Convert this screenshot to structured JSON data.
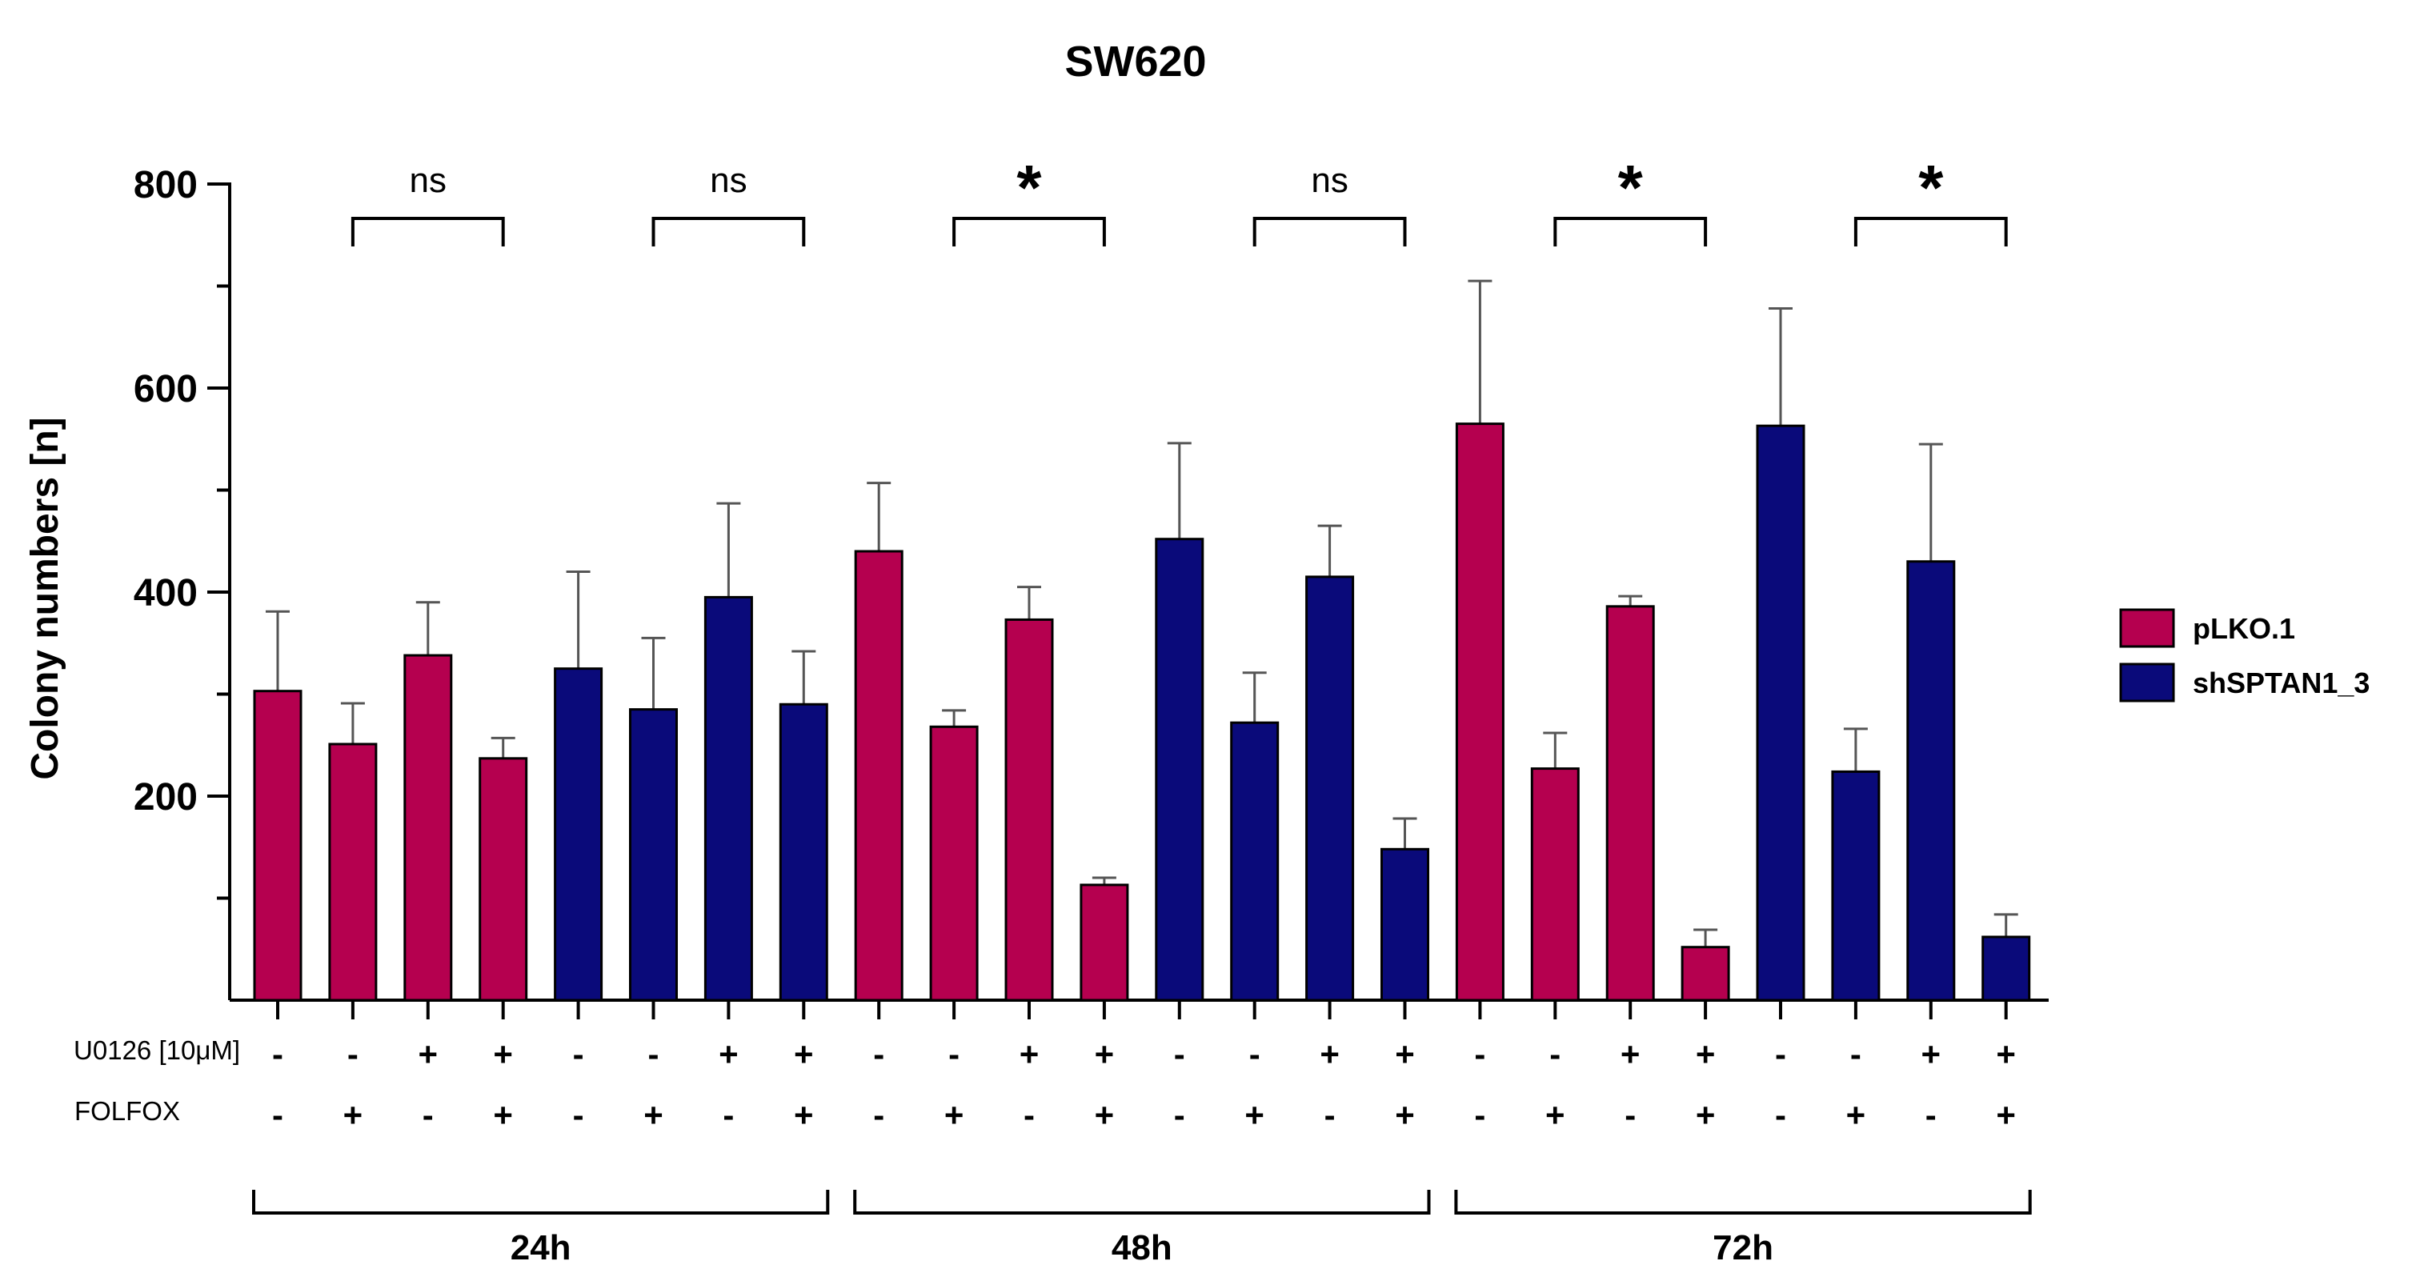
{
  "chart_data": {
    "type": "bar",
    "title": "SW620",
    "ylabel": "Colony numbers [n]",
    "xlabel": "",
    "ylim": [
      0,
      800
    ],
    "yticks": [
      200,
      400,
      600,
      800
    ],
    "legend_position": "right",
    "series_colors": {
      "pLKO.1": "#b5004f",
      "shSPTAN1_3": "#0a0a7a"
    },
    "legend": [
      {
        "name": "pLKO.1",
        "color": "#b5004f"
      },
      {
        "name": "shSPTAN1_3",
        "color": "#0a0a7a"
      }
    ],
    "row_labels": {
      "u0126": "U0126 [10μM]",
      "folfox": "FOLFOX"
    },
    "bars": [
      {
        "group": "24h",
        "series": "pLKO.1",
        "u0126": "-",
        "folfox": "-",
        "value": 303,
        "error": 78
      },
      {
        "group": "24h",
        "series": "pLKO.1",
        "u0126": "-",
        "folfox": "+",
        "value": 251,
        "error": 40
      },
      {
        "group": "24h",
        "series": "pLKO.1",
        "u0126": "+",
        "folfox": "-",
        "value": 338,
        "error": 52
      },
      {
        "group": "24h",
        "series": "pLKO.1",
        "u0126": "+",
        "folfox": "+",
        "value": 237,
        "error": 20
      },
      {
        "group": "24h",
        "series": "shSPTAN1_3",
        "u0126": "-",
        "folfox": "-",
        "value": 325,
        "error": 95
      },
      {
        "group": "24h",
        "series": "shSPTAN1_3",
        "u0126": "-",
        "folfox": "+",
        "value": 285,
        "error": 70
      },
      {
        "group": "24h",
        "series": "shSPTAN1_3",
        "u0126": "+",
        "folfox": "-",
        "value": 395,
        "error": 92
      },
      {
        "group": "24h",
        "series": "shSPTAN1_3",
        "u0126": "+",
        "folfox": "+",
        "value": 290,
        "error": 52
      },
      {
        "group": "48h",
        "series": "pLKO.1",
        "u0126": "-",
        "folfox": "-",
        "value": 440,
        "error": 67
      },
      {
        "group": "48h",
        "series": "pLKO.1",
        "u0126": "-",
        "folfox": "+",
        "value": 268,
        "error": 16
      },
      {
        "group": "48h",
        "series": "pLKO.1",
        "u0126": "+",
        "folfox": "-",
        "value": 373,
        "error": 32
      },
      {
        "group": "48h",
        "series": "pLKO.1",
        "u0126": "+",
        "folfox": "+",
        "value": 113,
        "error": 7
      },
      {
        "group": "48h",
        "series": "shSPTAN1_3",
        "u0126": "-",
        "folfox": "-",
        "value": 452,
        "error": 94
      },
      {
        "group": "48h",
        "series": "shSPTAN1_3",
        "u0126": "-",
        "folfox": "+",
        "value": 272,
        "error": 49
      },
      {
        "group": "48h",
        "series": "shSPTAN1_3",
        "u0126": "+",
        "folfox": "-",
        "value": 415,
        "error": 50
      },
      {
        "group": "48h",
        "series": "shSPTAN1_3",
        "u0126": "+",
        "folfox": "+",
        "value": 148,
        "error": 30
      },
      {
        "group": "72h",
        "series": "pLKO.1",
        "u0126": "-",
        "folfox": "-",
        "value": 565,
        "error": 140
      },
      {
        "group": "72h",
        "series": "pLKO.1",
        "u0126": "-",
        "folfox": "+",
        "value": 227,
        "error": 35
      },
      {
        "group": "72h",
        "series": "pLKO.1",
        "u0126": "+",
        "folfox": "-",
        "value": 386,
        "error": 10
      },
      {
        "group": "72h",
        "series": "pLKO.1",
        "u0126": "+",
        "folfox": "+",
        "value": 52,
        "error": 17
      },
      {
        "group": "72h",
        "series": "shSPTAN1_3",
        "u0126": "-",
        "folfox": "-",
        "value": 563,
        "error": 115
      },
      {
        "group": "72h",
        "series": "shSPTAN1_3",
        "u0126": "-",
        "folfox": "+",
        "value": 224,
        "error": 42
      },
      {
        "group": "72h",
        "series": "shSPTAN1_3",
        "u0126": "+",
        "folfox": "-",
        "value": 430,
        "error": 115
      },
      {
        "group": "72h",
        "series": "shSPTAN1_3",
        "u0126": "+",
        "folfox": "+",
        "value": 62,
        "error": 22
      }
    ],
    "significance": [
      {
        "from": 1,
        "to": 3,
        "label": "ns"
      },
      {
        "from": 5,
        "to": 7,
        "label": "ns"
      },
      {
        "from": 9,
        "to": 11,
        "label": "*"
      },
      {
        "from": 13,
        "to": 15,
        "label": "ns"
      },
      {
        "from": 17,
        "to": 19,
        "label": "*"
      },
      {
        "from": 21,
        "to": 23,
        "label": "*"
      }
    ],
    "groups": [
      {
        "label": "24h",
        "from": 0,
        "to": 7
      },
      {
        "label": "48h",
        "from": 8,
        "to": 15
      },
      {
        "label": "72h",
        "from": 16,
        "to": 23
      }
    ]
  }
}
